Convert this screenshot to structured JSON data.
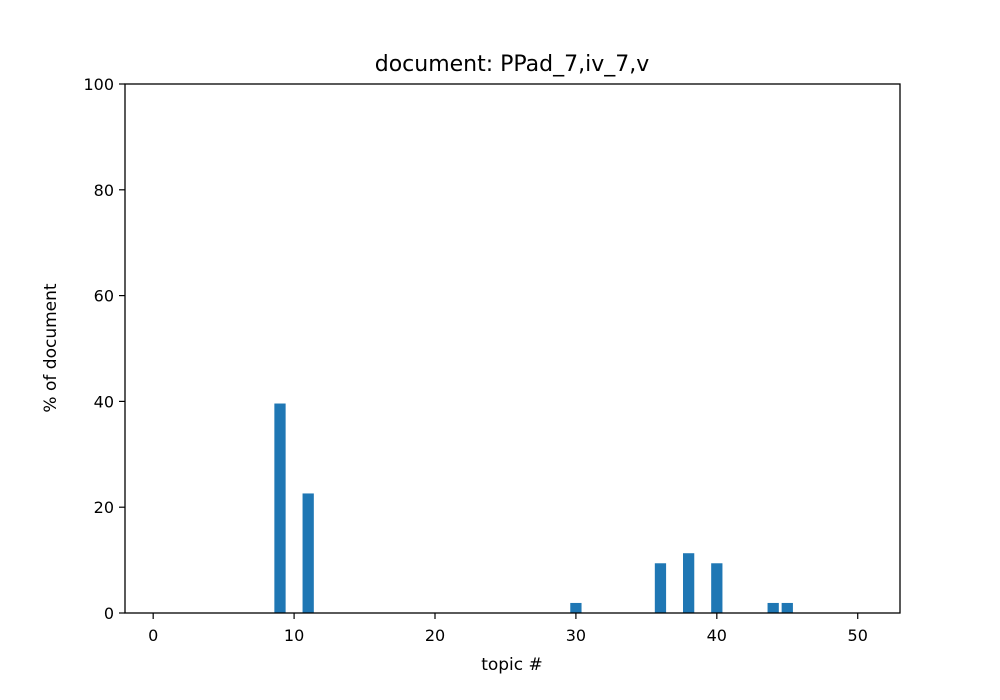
{
  "chart_data": {
    "type": "bar",
    "title": "document: PPad_7,iv_7,v",
    "xlabel": "topic #",
    "ylabel": "% of document",
    "xlim": [
      -2,
      53
    ],
    "ylim": [
      0,
      100
    ],
    "xticks": [
      0,
      10,
      20,
      30,
      40,
      50
    ],
    "yticks": [
      0,
      20,
      40,
      60,
      80,
      100
    ],
    "bar_width": 0.8,
    "grid": false,
    "legend": "none",
    "color": "#1f77b4",
    "x": [
      0,
      1,
      2,
      3,
      4,
      5,
      6,
      7,
      8,
      9,
      10,
      11,
      12,
      13,
      14,
      15,
      16,
      17,
      18,
      19,
      20,
      21,
      22,
      23,
      24,
      25,
      26,
      27,
      28,
      29,
      30,
      31,
      32,
      33,
      34,
      35,
      36,
      37,
      38,
      39,
      40,
      41,
      42,
      43,
      44,
      45,
      46,
      47,
      48,
      49,
      50
    ],
    "values": [
      0,
      0,
      0,
      0,
      0,
      0,
      0,
      0,
      0,
      39.6,
      0,
      22.6,
      0,
      0,
      0,
      0,
      0,
      0,
      0,
      0,
      0,
      0,
      0,
      0,
      0,
      0,
      0,
      0,
      0,
      0,
      1.9,
      0,
      0,
      0,
      0,
      0,
      9.4,
      0,
      11.3,
      0,
      9.4,
      0,
      0,
      0,
      1.9,
      1.9,
      0,
      0,
      0,
      0,
      0
    ]
  }
}
